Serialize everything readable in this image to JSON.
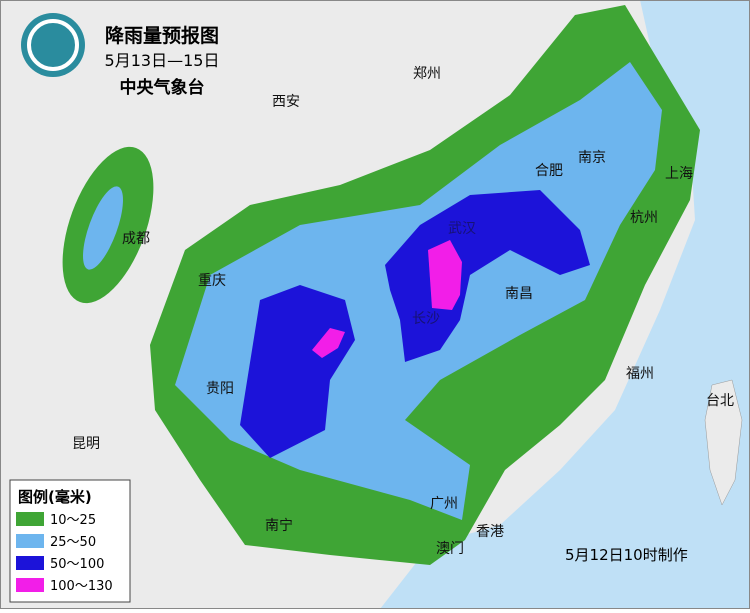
{
  "header": {
    "title": "降雨量预报图",
    "dates": "5月13日—15日",
    "agency": "中央气象台"
  },
  "cities": [
    "郑州",
    "西安",
    "合肥",
    "南京",
    "上海",
    "杭州",
    "成都",
    "重庆",
    "武汉",
    "长沙",
    "南昌",
    "贵阳",
    "昆明",
    "福州",
    "台北",
    "广州",
    "香港",
    "澳门",
    "南宁"
  ],
  "legend": {
    "title": "图例(毫米)",
    "items": [
      {
        "label": "10～25",
        "color": "#3fa535"
      },
      {
        "label": "25～50",
        "color": "#6db5ee"
      },
      {
        "label": "50～100",
        "color": "#1c13d9"
      },
      {
        "label": "100～130",
        "color": "#f21ee8"
      }
    ]
  },
  "footer": "5月12日10时制作"
}
